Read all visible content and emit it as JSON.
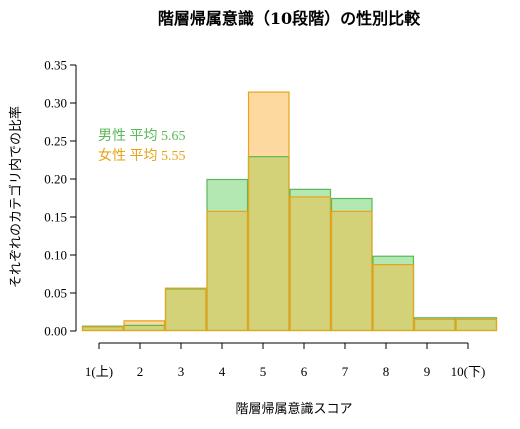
{
  "chart_data": {
    "type": "bar",
    "title": "階層帰属意識（10段階）の性別比較",
    "xlabel": "階層帰属意識スコア",
    "ylabel": "それぞれのカテゴリ内での比率",
    "categories": [
      "1(上)",
      "2",
      "3",
      "4",
      "5",
      "6",
      "7",
      "8",
      "9",
      "10(下)"
    ],
    "ylim": [
      0,
      0.35
    ],
    "yticks": [
      "0.00",
      "0.05",
      "0.10",
      "0.15",
      "0.20",
      "0.25",
      "0.30",
      "0.35"
    ],
    "series": [
      {
        "name": "男性",
        "mean_label": "男性 平均 5.65",
        "color": "#5ab85a",
        "fill": "#b3e8b3",
        "values": [
          0.007,
          0.008,
          0.056,
          0.2,
          0.23,
          0.187,
          0.175,
          0.099,
          0.018,
          0.018
        ]
      },
      {
        "name": "女性",
        "mean_label": "女性 平均 5.55",
        "color": "#e8a317",
        "fill": "#fdd9a0",
        "values": [
          0.006,
          0.014,
          0.057,
          0.158,
          0.315,
          0.177,
          0.158,
          0.088,
          0.016,
          0.016
        ]
      }
    ],
    "overlap_fill": "#d4d278",
    "grid": false
  }
}
